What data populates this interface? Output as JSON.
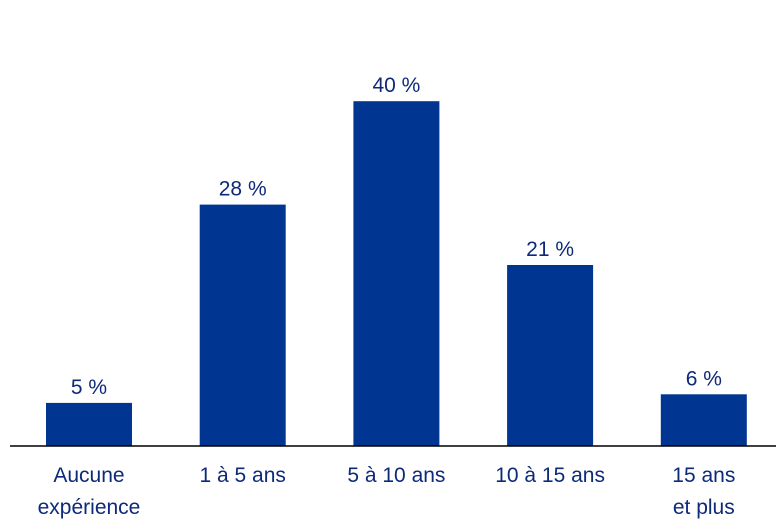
{
  "colors": {
    "bar": "#003591",
    "axis": "#000000",
    "text": "#0d2a7a"
  },
  "chart_data": {
    "type": "bar",
    "title": "",
    "xlabel": "",
    "ylabel": "",
    "grid": false,
    "ylim": [
      0,
      45
    ],
    "categories": [
      [
        "Aucune",
        "expérience"
      ],
      [
        "1 à 5 ans"
      ],
      [
        "5 à 10 ans"
      ],
      [
        "10 à 15 ans"
      ],
      [
        "15 ans",
        "et plus"
      ]
    ],
    "values": [
      5,
      28,
      40,
      21,
      6
    ],
    "data_labels": [
      "5 %",
      "28 %",
      "40 %",
      "21 %",
      "6 %"
    ]
  }
}
